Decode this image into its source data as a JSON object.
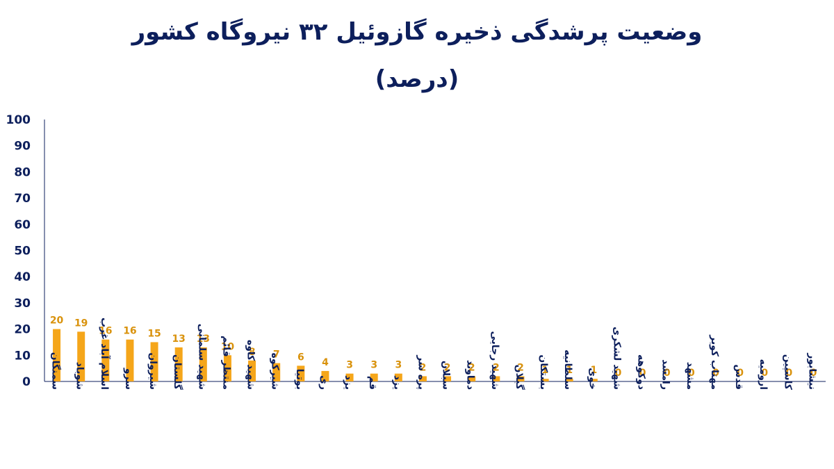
{
  "chart_data": {
    "type": "bar",
    "title": "وضعیت پرشدگی ذخیره گازوئیل ۳۲ نیروگاه کشور",
    "subtitle": "(درصد)",
    "ylim": [
      0,
      100
    ],
    "yticks": [
      "0",
      "10",
      "20",
      "30",
      "40",
      "50",
      "60",
      "70",
      "80",
      "90",
      "100"
    ],
    "grid": false,
    "bar_color": "#f5a61a",
    "label_color": "#d9920c",
    "text_color": "#0d1f5c",
    "categories": [
      "سمنگان",
      "شوباد",
      "اسلام آباد غرب",
      "سرو",
      "شیروان",
      "گلستان",
      "شهید سلمانی",
      "منتظر قائم",
      "شهید کاوه",
      "شیرکوه",
      "بوتیا",
      "ری",
      "یزد",
      "قم",
      "یزد",
      "پره سر",
      "سبلان",
      "دماوند",
      "شهید رجایی",
      "گیلان",
      "بستکان",
      "سلطانیه",
      "خوی",
      "شهید لشکری",
      "دوکوهه",
      "رامشد",
      "مشهد",
      "مهتاب کویر",
      "قدس",
      "ارومیه",
      "کاسپین",
      "نیشابور"
    ],
    "values": [
      20,
      19,
      16,
      16,
      15,
      13,
      13,
      10,
      8,
      7,
      6,
      4,
      3,
      3,
      3,
      2,
      2,
      2,
      2,
      2,
      1,
      1,
      1,
      0,
      0,
      0,
      0,
      0,
      0,
      0,
      0,
      0
    ],
    "data_labels": [
      "20",
      "19",
      "16",
      "16",
      "15",
      "13",
      "13",
      "10",
      "8",
      "7",
      "6",
      "4",
      "3",
      "3",
      "3",
      "2",
      "2",
      "2",
      "2",
      "2",
      "1",
      "1",
      "1",
      "0",
      "0",
      "0",
      "0",
      "0",
      "0",
      "0",
      "0",
      "0"
    ]
  }
}
